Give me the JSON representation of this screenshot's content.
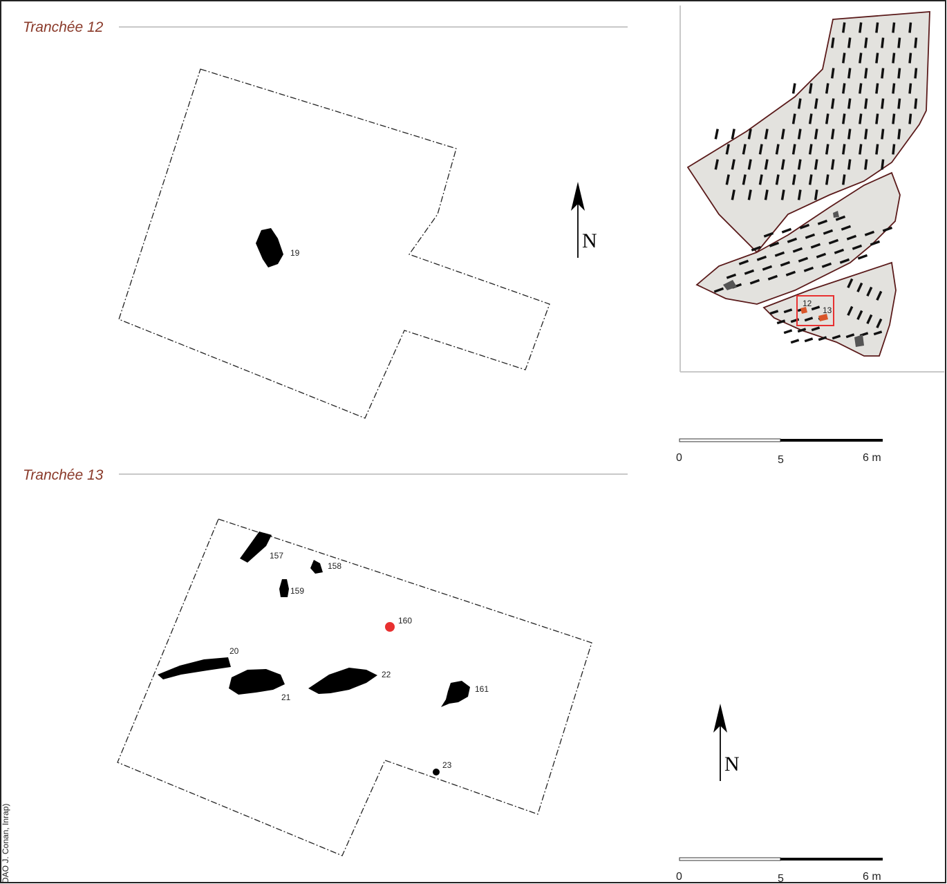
{
  "trench_12": {
    "title": "Tranchée 12",
    "features": [
      {
        "label": "19"
      }
    ]
  },
  "trench_13": {
    "title": "Tranchée 13",
    "features": [
      {
        "label": "157"
      },
      {
        "label": "158"
      },
      {
        "label": "159"
      },
      {
        "label": "160",
        "highlight": true
      },
      {
        "label": "20"
      },
      {
        "label": "21"
      },
      {
        "label": "22"
      },
      {
        "label": "161"
      },
      {
        "label": "23"
      }
    ]
  },
  "locator_map": {
    "trench_labels": [
      "12",
      "13"
    ],
    "colors": {
      "field_fill": "#e3e2de",
      "field_outline": "#5a1a1a",
      "highlight_box": "#e83030",
      "trench_marker": "#d9562a"
    }
  },
  "north_arrow": {
    "label": "N"
  },
  "scale_bar": {
    "ticks": [
      "0",
      "5",
      "6 m"
    ]
  },
  "credit": "DAO J. Conan, Inrap)",
  "colors": {
    "title": "#8a3a2a",
    "feature": "#000000",
    "feature_highlight": "#e83030",
    "rule": "#c8c8c8"
  }
}
